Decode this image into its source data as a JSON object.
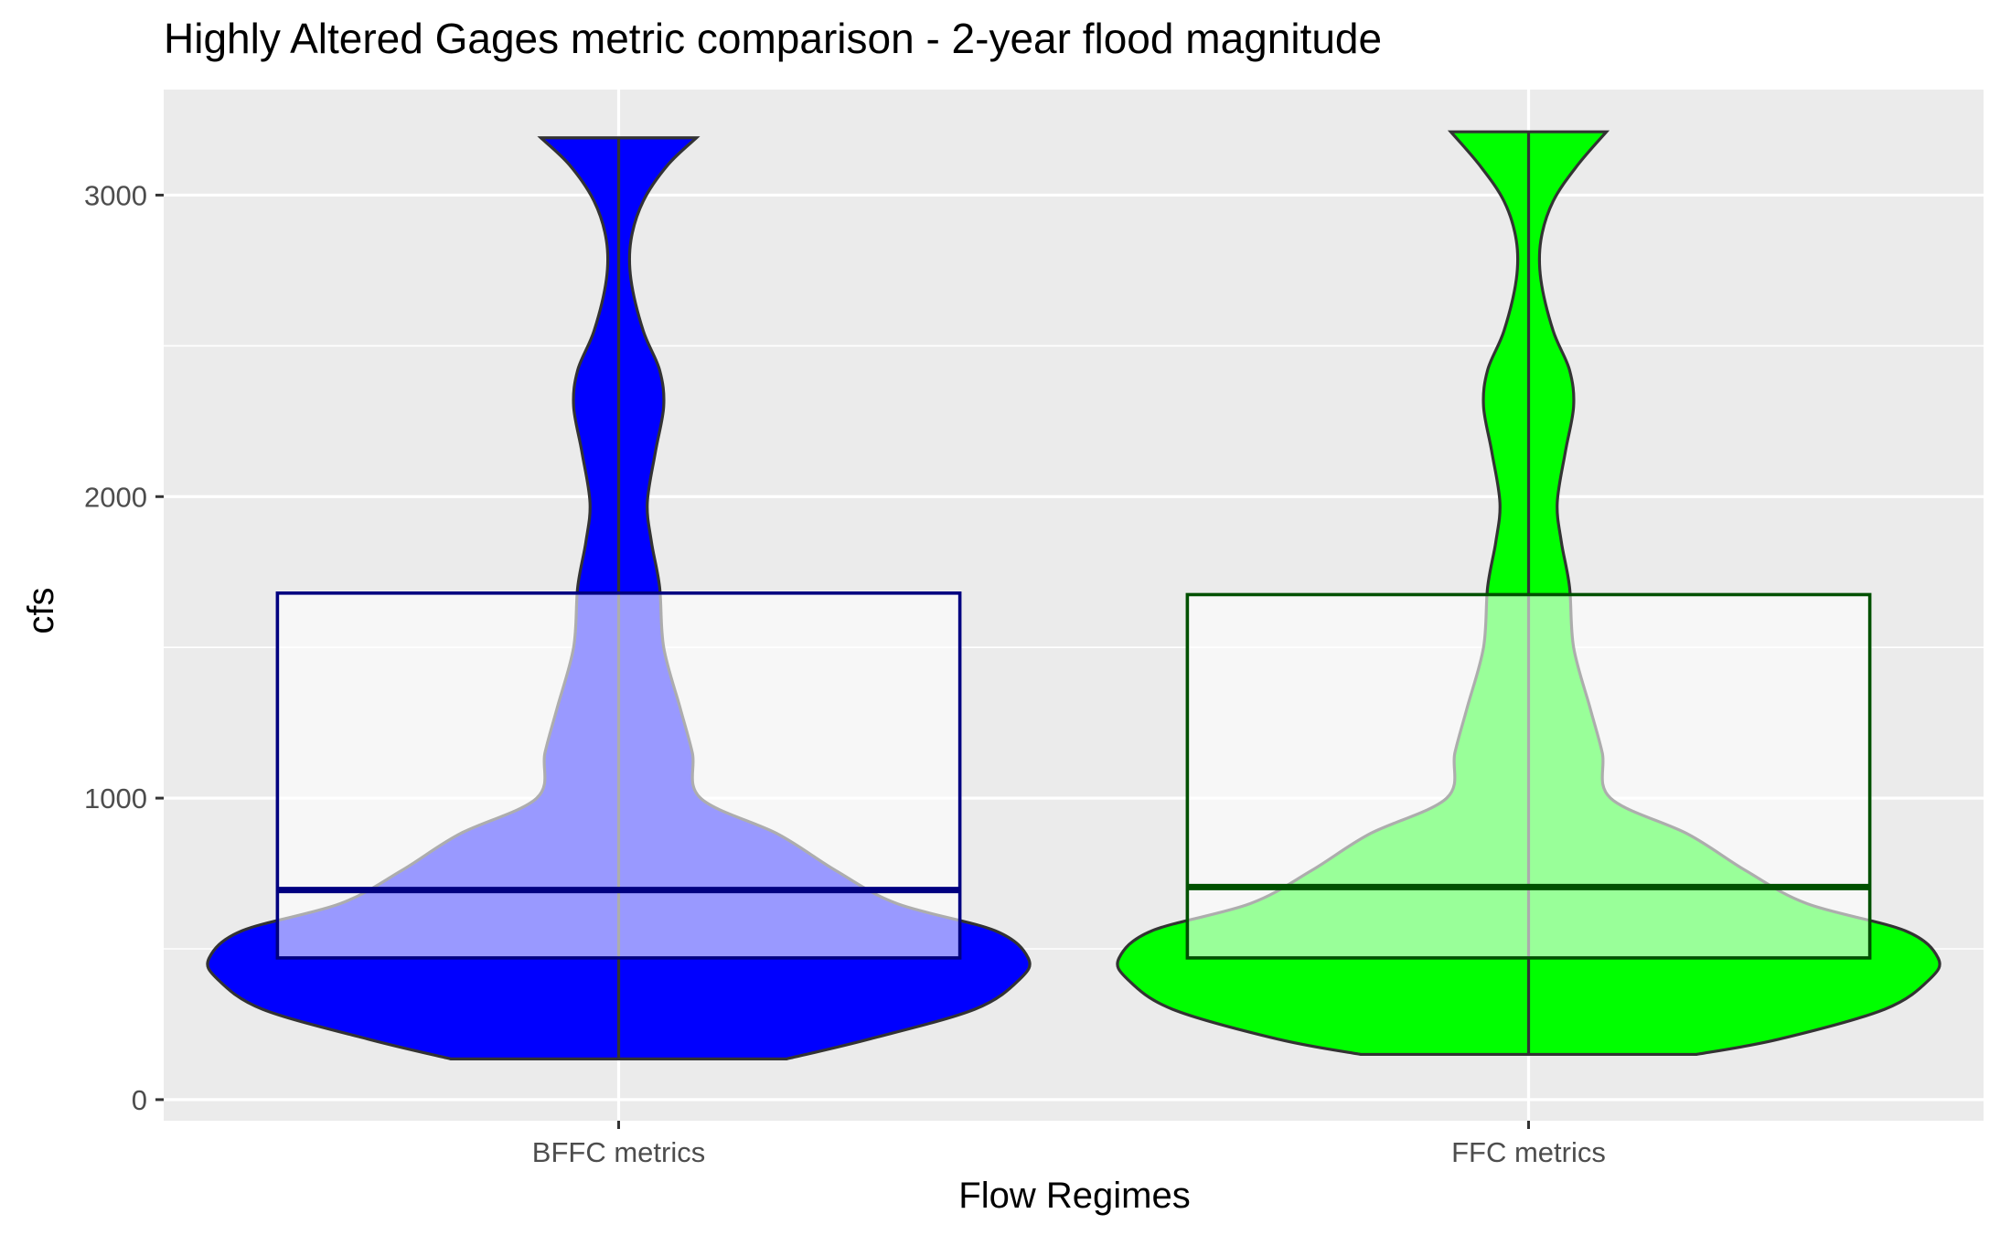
{
  "chart_data": {
    "type": "violin",
    "title": "Highly Altered Gages metric comparison - 2-year flood magnitude",
    "xlabel": "Flow Regimes",
    "ylabel": "cfs",
    "categories": [
      "BFFC metrics",
      "FFC metrics"
    ],
    "ylim": [
      -70,
      3350
    ],
    "yticks": [
      0,
      1000,
      2000,
      3000
    ],
    "grid": true,
    "legend": "none",
    "series": [
      {
        "category": "BFFC metrics",
        "fill_color": "#0000ff",
        "box_edge_color": "#000080",
        "min": 135,
        "max": 3190,
        "q1": 470,
        "median": 695,
        "q3": 1680,
        "density_profile": [
          [
            135,
            0.41
          ],
          [
            200,
            0.61
          ],
          [
            300,
            0.87
          ],
          [
            400,
            0.98
          ],
          [
            470,
            1.0
          ],
          [
            560,
            0.92
          ],
          [
            650,
            0.68
          ],
          [
            760,
            0.53
          ],
          [
            880,
            0.39
          ],
          [
            1000,
            0.2
          ],
          [
            1150,
            0.18
          ],
          [
            1300,
            0.15
          ],
          [
            1500,
            0.11
          ],
          [
            1700,
            0.1
          ],
          [
            1850,
            0.08
          ],
          [
            1980,
            0.07
          ],
          [
            2150,
            0.09
          ],
          [
            2300,
            0.11
          ],
          [
            2420,
            0.1
          ],
          [
            2550,
            0.06
          ],
          [
            2720,
            0.03
          ],
          [
            2850,
            0.03
          ],
          [
            2980,
            0.06
          ],
          [
            3100,
            0.12
          ],
          [
            3190,
            0.19
          ]
        ]
      },
      {
        "category": "FFC metrics",
        "fill_color": "#00ff00",
        "box_edge_color": "#005000",
        "min": 150,
        "max": 3210,
        "q1": 470,
        "median": 705,
        "q3": 1675,
        "density_profile": [
          [
            150,
            0.41
          ],
          [
            200,
            0.61
          ],
          [
            300,
            0.87
          ],
          [
            400,
            0.98
          ],
          [
            470,
            1.0
          ],
          [
            560,
            0.92
          ],
          [
            650,
            0.68
          ],
          [
            760,
            0.53
          ],
          [
            880,
            0.39
          ],
          [
            1000,
            0.2
          ],
          [
            1150,
            0.18
          ],
          [
            1300,
            0.15
          ],
          [
            1500,
            0.11
          ],
          [
            1700,
            0.1
          ],
          [
            1850,
            0.08
          ],
          [
            1980,
            0.07
          ],
          [
            2150,
            0.09
          ],
          [
            2300,
            0.11
          ],
          [
            2420,
            0.1
          ],
          [
            2550,
            0.06
          ],
          [
            2720,
            0.03
          ],
          [
            2850,
            0.03
          ],
          [
            2980,
            0.06
          ],
          [
            3100,
            0.12
          ],
          [
            3210,
            0.19
          ]
        ]
      }
    ]
  }
}
